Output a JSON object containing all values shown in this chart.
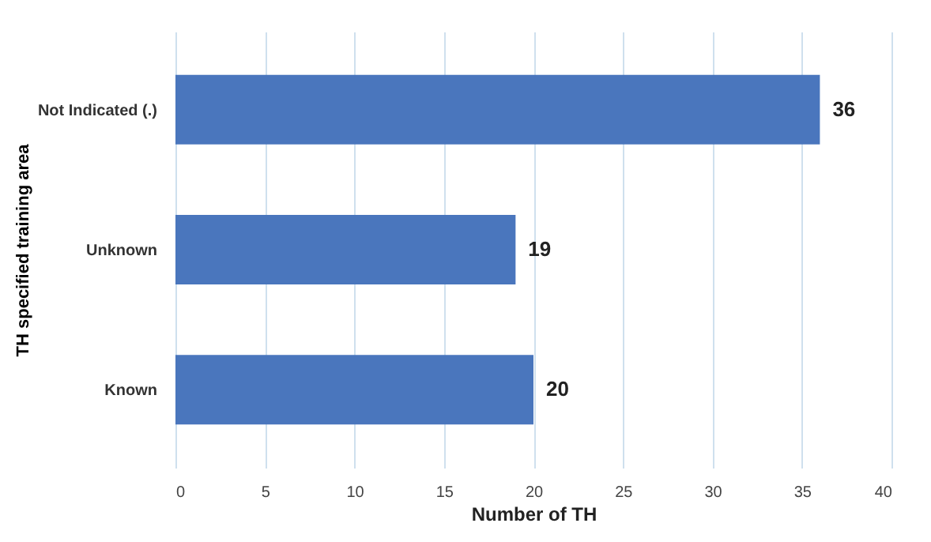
{
  "chart_data": {
    "type": "bar",
    "orientation": "horizontal",
    "xlabel": "Number of TH",
    "ylabel": "TH specified training area",
    "categories": [
      "Not Indicated (.)",
      "Unknown",
      "Known"
    ],
    "values": [
      36,
      19,
      20
    ],
    "color": "#4a76bd",
    "xlim": [
      0,
      40
    ],
    "xticks": [
      0,
      5,
      10,
      15,
      20,
      25,
      30,
      35,
      40
    ],
    "grid": "x",
    "data_labels": true
  }
}
